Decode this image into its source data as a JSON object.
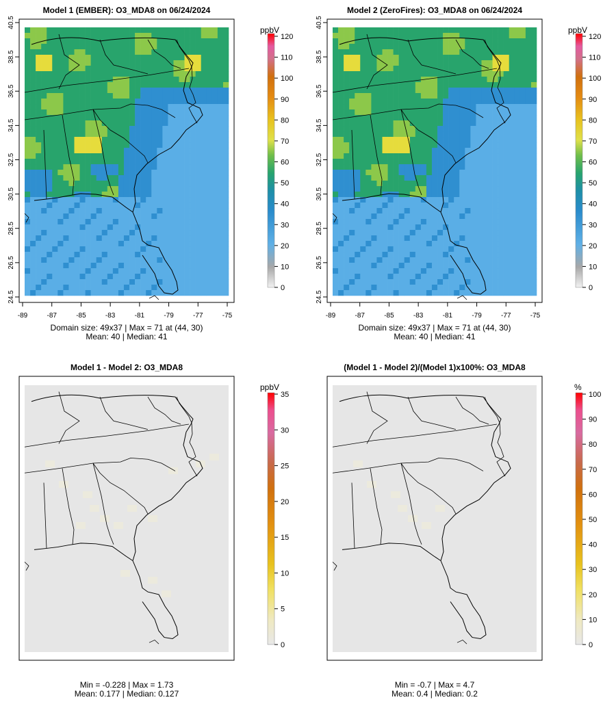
{
  "chart_data": [
    {
      "type": "heatmap",
      "title": "Model 1 (EMBER): O3_MDA8 on 06/24/2024",
      "unit_label": "ppbV",
      "x_ticks": [
        "-89",
        "-87",
        "-85",
        "-83",
        "-81",
        "-79",
        "-77",
        "-75"
      ],
      "y_ticks": [
        "24.5",
        "26.5",
        "28.5",
        "30.5",
        "32.5",
        "34.5",
        "36.5",
        "38.5",
        "40.5"
      ],
      "xlim": [
        -89,
        -75
      ],
      "ylim": [
        24.5,
        40.5
      ],
      "colorbar_ticks": [
        "0",
        "10",
        "20",
        "30",
        "40",
        "50",
        "60",
        "70",
        "80",
        "90",
        "100",
        "110",
        "120"
      ],
      "colorbar_range": [
        0,
        120
      ],
      "stats_line1": "Domain size: 49x37 | Max = 71 at (44, 30)",
      "stats_line2": "Mean: 40 |  Median: 41",
      "domain_size": "49x37",
      "max": 71,
      "max_location": "(44, 30)",
      "mean": 40,
      "median": 41
    },
    {
      "type": "heatmap",
      "title": "Model 2 (ZeroFires): O3_MDA8 on 06/24/2024",
      "unit_label": "ppbV",
      "x_ticks": [
        "-89",
        "-87",
        "-85",
        "-83",
        "-81",
        "-79",
        "-77",
        "-75"
      ],
      "y_ticks": [
        "24.5",
        "26.5",
        "28.5",
        "30.5",
        "32.5",
        "34.5",
        "36.5",
        "38.5",
        "40.5"
      ],
      "xlim": [
        -89,
        -75
      ],
      "ylim": [
        24.5,
        40.5
      ],
      "colorbar_ticks": [
        "0",
        "10",
        "20",
        "30",
        "40",
        "50",
        "60",
        "70",
        "80",
        "90",
        "100",
        "110",
        "120"
      ],
      "colorbar_range": [
        0,
        120
      ],
      "stats_line1": "Domain size: 49x37 | Max = 71 at (44, 30)",
      "stats_line2": "Mean: 40 |  Median: 41",
      "domain_size": "49x37",
      "max": 71,
      "max_location": "(44, 30)",
      "mean": 40,
      "median": 41
    },
    {
      "type": "heatmap",
      "title": "Model 1 - Model 2: O3_MDA8",
      "unit_label": "ppbV",
      "colorbar_ticks": [
        "0",
        "5",
        "10",
        "15",
        "20",
        "25",
        "30",
        "35"
      ],
      "colorbar_range": [
        0,
        35
      ],
      "stats_line1": "Min = -0.228 | Max = 1.73",
      "stats_line2": "Mean: 0.177 |  Median: 0.127",
      "min": -0.228,
      "max": 1.73,
      "mean": 0.177,
      "median": 0.127
    },
    {
      "type": "heatmap",
      "title": "(Model 1 - Model 2)/(Model 1)x100%: O3_MDA8",
      "unit_label": "%",
      "colorbar_ticks": [
        "0",
        "10",
        "20",
        "30",
        "40",
        "50",
        "60",
        "70",
        "80",
        "90",
        "100"
      ],
      "colorbar_range": [
        0,
        100
      ],
      "stats_line1": "Min = -0.7 | Max = 4.7",
      "stats_line2": "Mean: 0.4 |  Median: 0.2",
      "min": -0.7,
      "max": 4.7,
      "mean": 0.4,
      "median": 0.2
    }
  ],
  "colors": {
    "ocean_low": "#5aaee6",
    "ocean_mid": "#2f8fd0",
    "land_green": "#28a46c",
    "land_lightgreen": "#8cc84a",
    "hotspot_yellow": "#e6dc3c",
    "diff_background": "#e6e6e6",
    "diff_faint": "#eceadc",
    "map_border": "#000000"
  }
}
